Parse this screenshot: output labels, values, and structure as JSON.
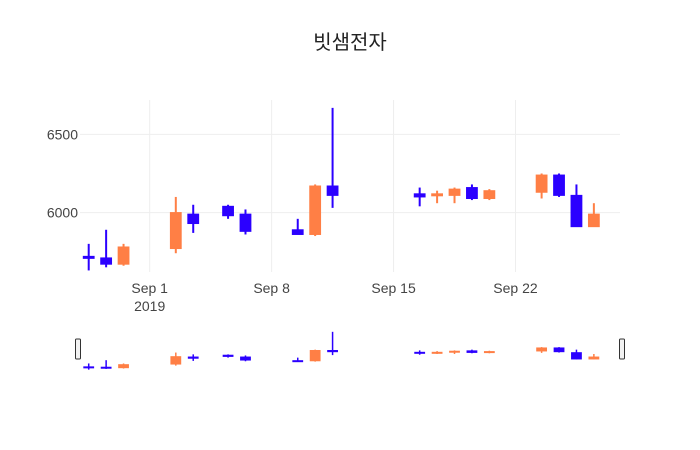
{
  "chart_data": {
    "type": "candlestick",
    "title": "빗샘전자",
    "xlabel": "",
    "ylabel": "",
    "x_ticks": [
      "Sep 1",
      "Sep 8",
      "Sep 15",
      "Sep 22"
    ],
    "x_tick_year": "2019",
    "y_ticks": [
      6000,
      6500
    ],
    "ylim": [
      5620,
      6720
    ],
    "x_range": [
      "2019-08-28",
      "2019-09-27"
    ],
    "grid": true,
    "legend": "none",
    "rangeslider": true,
    "colors": {
      "increasing": "#ff7f45",
      "decreasing": "#2b00ff"
    },
    "candles": [
      {
        "date": "2019-08-28",
        "open": 5720,
        "high": 5800,
        "low": 5630,
        "close": 5710
      },
      {
        "date": "2019-08-29",
        "open": 5710,
        "high": 5890,
        "low": 5650,
        "close": 5670
      },
      {
        "date": "2019-08-30",
        "open": 5670,
        "high": 5800,
        "low": 5660,
        "close": 5780
      },
      {
        "date": "2019-09-02",
        "open": 5770,
        "high": 6100,
        "low": 5740,
        "close": 6000
      },
      {
        "date": "2019-09-03",
        "open": 5990,
        "high": 6050,
        "low": 5870,
        "close": 5930
      },
      {
        "date": "2019-09-05",
        "open": 6040,
        "high": 6050,
        "low": 5960,
        "close": 5980
      },
      {
        "date": "2019-09-06",
        "open": 5990,
        "high": 6020,
        "low": 5860,
        "close": 5880
      },
      {
        "date": "2019-09-09",
        "open": 5890,
        "high": 5960,
        "low": 5860,
        "close": 5860
      },
      {
        "date": "2019-09-10",
        "open": 5860,
        "high": 6180,
        "low": 5850,
        "close": 6170
      },
      {
        "date": "2019-09-11",
        "open": 6170,
        "high": 6670,
        "low": 6030,
        "close": 6110
      },
      {
        "date": "2019-09-16",
        "open": 6120,
        "high": 6160,
        "low": 6040,
        "close": 6100
      },
      {
        "date": "2019-09-17",
        "open": 6110,
        "high": 6140,
        "low": 6060,
        "close": 6120
      },
      {
        "date": "2019-09-18",
        "open": 6110,
        "high": 6160,
        "low": 6060,
        "close": 6150
      },
      {
        "date": "2019-09-19",
        "open": 6160,
        "high": 6180,
        "low": 6080,
        "close": 6090
      },
      {
        "date": "2019-09-20",
        "open": 6090,
        "high": 6150,
        "low": 6080,
        "close": 6140
      },
      {
        "date": "2019-09-23",
        "open": 6130,
        "high": 6250,
        "low": 6090,
        "close": 6240
      },
      {
        "date": "2019-09-24",
        "open": 6240,
        "high": 6250,
        "low": 6100,
        "close": 6110
      },
      {
        "date": "2019-09-25",
        "open": 6110,
        "high": 6180,
        "low": 5910,
        "close": 5910
      },
      {
        "date": "2019-09-26",
        "open": 5910,
        "high": 6060,
        "low": 5910,
        "close": 5990
      }
    ]
  }
}
